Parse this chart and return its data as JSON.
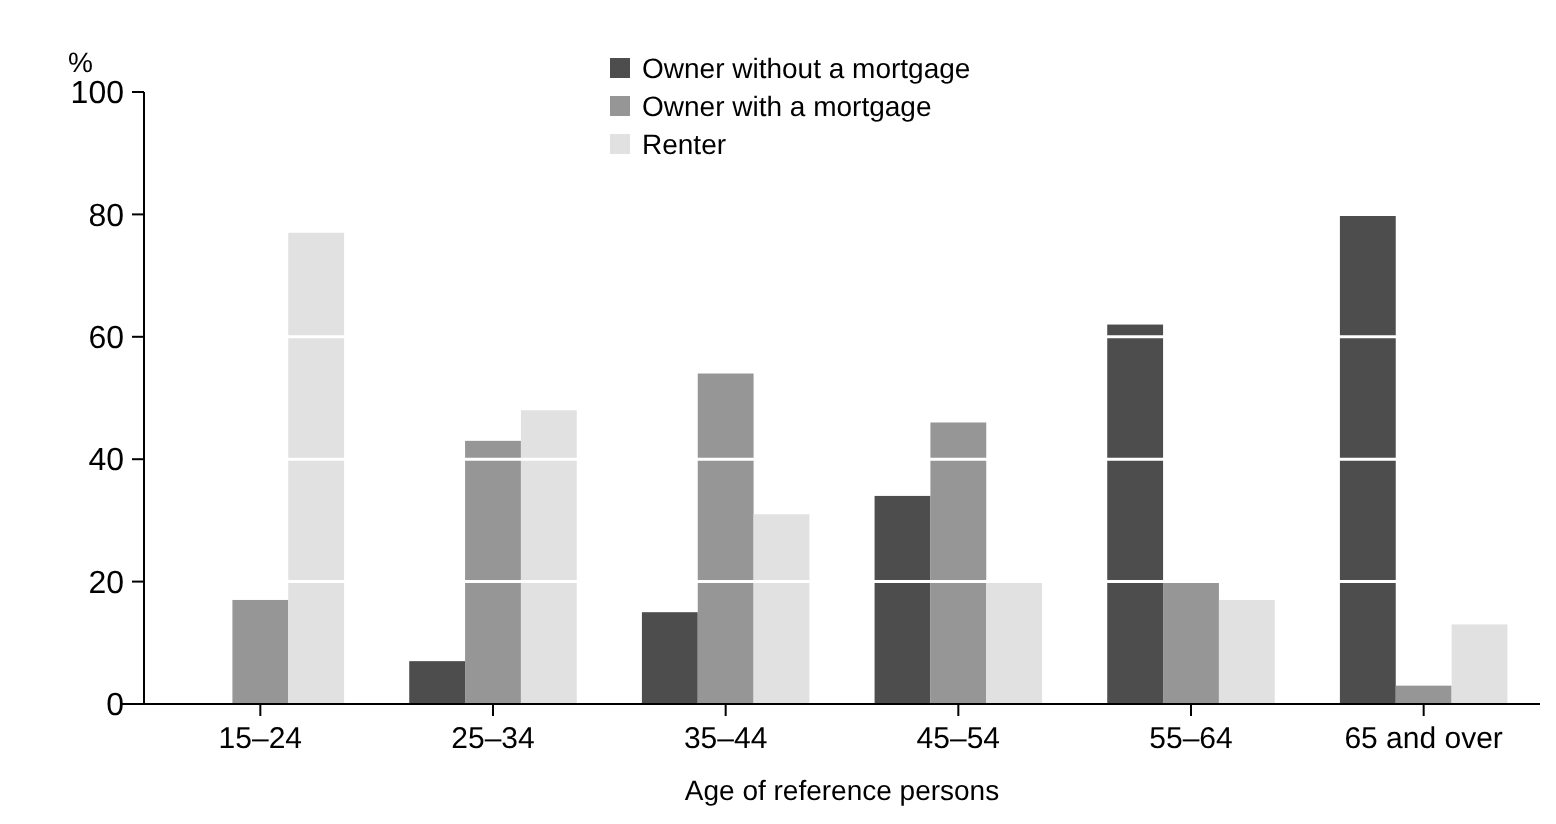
{
  "chart_data": {
    "type": "bar",
    "xlabel": "Age of reference persons",
    "ylabel": "%",
    "categories": [
      "15–24",
      "25–34",
      "35–44",
      "45–54",
      "55–64",
      "65 and over"
    ],
    "series": [
      {
        "name": "Owner without a mortgage",
        "color": "#4d4d4d",
        "values": [
          null,
          7,
          15,
          34,
          62,
          80
        ]
      },
      {
        "name": "Owner with a mortgage",
        "color": "#969696",
        "values": [
          17,
          43,
          54,
          46,
          20,
          3
        ]
      },
      {
        "name": "Renter",
        "color": "#e1e1e1",
        "values": [
          77,
          48,
          31,
          20,
          17,
          13
        ]
      }
    ],
    "ylim": [
      0,
      100
    ],
    "yticks": [
      0,
      20,
      40,
      60,
      80,
      100
    ],
    "grid": "y",
    "legend": "top"
  }
}
